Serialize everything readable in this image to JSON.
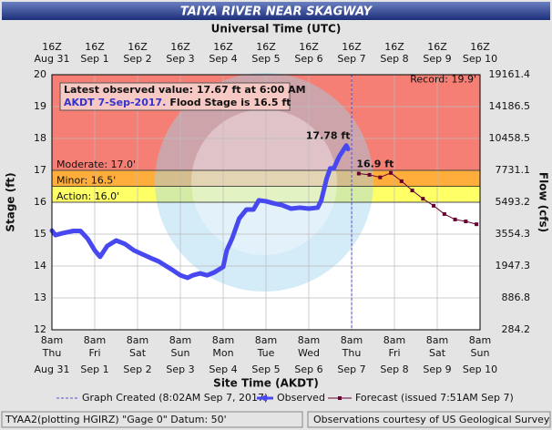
{
  "chart_data": {
    "type": "line",
    "title": "TAIYA RIVER NEAR SKAGWAY",
    "top_axis_label": "Universal Time (UTC)",
    "x_axis_label": "Site Time (AKDT)",
    "y_axis_label": "Stage (ft)",
    "y2_axis_label": "Flow (cfs)",
    "xlim": [
      "2017-08-31T08:00",
      "2017-09-10T08:00"
    ],
    "xticks": [
      {
        "value": "2017-08-31T08:00",
        "label": "8am",
        "day": "Thu",
        "date": "Aug 31",
        "utc": "16Z"
      },
      {
        "value": "2017-09-01T08:00",
        "label": "8am",
        "day": "Fri",
        "date": "Sep 1",
        "utc": "16Z"
      },
      {
        "value": "2017-09-02T08:00",
        "label": "8am",
        "day": "Sat",
        "date": "Sep 2",
        "utc": "16Z"
      },
      {
        "value": "2017-09-03T08:00",
        "label": "8am",
        "day": "Sun",
        "date": "Sep 3",
        "utc": "16Z"
      },
      {
        "value": "2017-09-04T08:00",
        "label": "8am",
        "day": "Mon",
        "date": "Sep 4",
        "utc": "16Z"
      },
      {
        "value": "2017-09-05T08:00",
        "label": "8am",
        "day": "Tue",
        "date": "Sep 5",
        "utc": "16Z"
      },
      {
        "value": "2017-09-06T08:00",
        "label": "8am",
        "day": "Wed",
        "date": "Sep 6",
        "utc": "16Z"
      },
      {
        "value": "2017-09-07T08:00",
        "label": "8am",
        "day": "Thu",
        "date": "Sep 7",
        "utc": "16Z"
      },
      {
        "value": "2017-09-08T08:00",
        "label": "8am",
        "day": "Fri",
        "date": "Sep 8",
        "utc": "16Z"
      },
      {
        "value": "2017-09-09T08:00",
        "label": "8am",
        "day": "Sat",
        "date": "Sep 9",
        "utc": "16Z"
      },
      {
        "value": "2017-09-10T08:00",
        "label": "8am",
        "day": "Sun",
        "date": "Sep 10",
        "utc": "16Z"
      }
    ],
    "ylim": [
      12,
      20
    ],
    "yticks": [
      12,
      13,
      14,
      15,
      16,
      17,
      18,
      19,
      20
    ],
    "y2ticks": [
      284.2,
      886.8,
      1947.3,
      3554.3,
      5493.2,
      7731.1,
      10458.5,
      14186.5,
      19161.4
    ],
    "grid": true,
    "thresholds": [
      {
        "label": "Action: 16.0'",
        "value": 16.0,
        "color": "#ffff66"
      },
      {
        "label": "Minor: 16.5'",
        "value": 16.5,
        "color": "#ffae3c"
      },
      {
        "label": "Moderate: 17.0'",
        "value": 17.0,
        "color": "#f57f74"
      }
    ],
    "record": {
      "label": "Record: 19.9'",
      "value": 19.9
    },
    "graph_created": {
      "x": "2017-09-07T08:02",
      "label": "Graph Created (8:02AM Sep 7, 2017)",
      "color": "#5555cc"
    },
    "info_box": {
      "line1": "Latest observed value: 17.67 ft at 6:00 AM",
      "line2a": "AKDT 7-Sep-2017.",
      "line2b": "Flood Stage is 16.5 ft"
    },
    "annotations": [
      {
        "text": "17.78 ft",
        "x": "2017-09-07T05:00",
        "y": 17.78,
        "color": "#4444ee"
      },
      {
        "text": "16.9 ft",
        "x": "2017-09-07T12:00",
        "y": 16.9,
        "color": "#99003d"
      }
    ],
    "series": [
      {
        "name": "Observed",
        "color": "#4848f0",
        "x": [
          "2017-08-31T08:00",
          "2017-08-31T10:00",
          "2017-08-31T14:00",
          "2017-08-31T20:00",
          "2017-09-01T00:00",
          "2017-09-01T04:00",
          "2017-09-01T08:00",
          "2017-09-01T11:00",
          "2017-09-01T15:00",
          "2017-09-01T20:00",
          "2017-09-02T01:00",
          "2017-09-02T06:00",
          "2017-09-02T15:00",
          "2017-09-02T20:00",
          "2017-09-03T04:00",
          "2017-09-03T08:00",
          "2017-09-03T12:00",
          "2017-09-03T15:00",
          "2017-09-03T19:00",
          "2017-09-03T23:00",
          "2017-09-04T03:00",
          "2017-09-04T08:00",
          "2017-09-04T10:00",
          "2017-09-04T13:00",
          "2017-09-04T17:00",
          "2017-09-04T21:00",
          "2017-09-05T01:00",
          "2017-09-05T04:00",
          "2017-09-05T08:00",
          "2017-09-05T12:00",
          "2017-09-05T17:00",
          "2017-09-05T22:00",
          "2017-09-06T03:00",
          "2017-09-06T08:00",
          "2017-09-06T13:00",
          "2017-09-06T15:00",
          "2017-09-06T18:00",
          "2017-09-06T20:00",
          "2017-09-06T22:00",
          "2017-09-07T01:00",
          "2017-09-07T04:00",
          "2017-09-07T05:00",
          "2017-09-07T06:00"
        ],
        "values": [
          15.11,
          14.97,
          15.03,
          15.1,
          15.1,
          14.86,
          14.49,
          14.29,
          14.63,
          14.8,
          14.69,
          14.49,
          14.26,
          14.14,
          13.86,
          13.71,
          13.63,
          13.71,
          13.77,
          13.71,
          13.8,
          13.97,
          14.49,
          14.86,
          15.49,
          15.77,
          15.77,
          16.06,
          16.03,
          15.97,
          15.91,
          15.8,
          15.83,
          15.8,
          15.83,
          16.06,
          16.74,
          17.06,
          17.06,
          17.43,
          17.69,
          17.78,
          17.67
        ]
      },
      {
        "name": "Forecast (issued 7:51AM Sep 7)",
        "color": "#660033",
        "x": [
          "2017-09-07T12:00",
          "2017-09-07T18:00",
          "2017-09-08T00:00",
          "2017-09-08T06:00",
          "2017-09-08T12:00",
          "2017-09-08T18:00",
          "2017-09-09T00:00",
          "2017-09-09T06:00",
          "2017-09-09T12:00",
          "2017-09-09T18:00",
          "2017-09-10T00:00",
          "2017-09-10T06:00"
        ],
        "values": [
          16.9,
          16.86,
          16.78,
          16.92,
          16.66,
          16.37,
          16.11,
          15.89,
          15.63,
          15.46,
          15.4,
          15.31
        ]
      }
    ],
    "footer_left": "TYAA2(plotting HGIRZ) \"Gage 0\" Datum: 50'",
    "footer_right": "Observations courtesy of US Geological Survey"
  }
}
